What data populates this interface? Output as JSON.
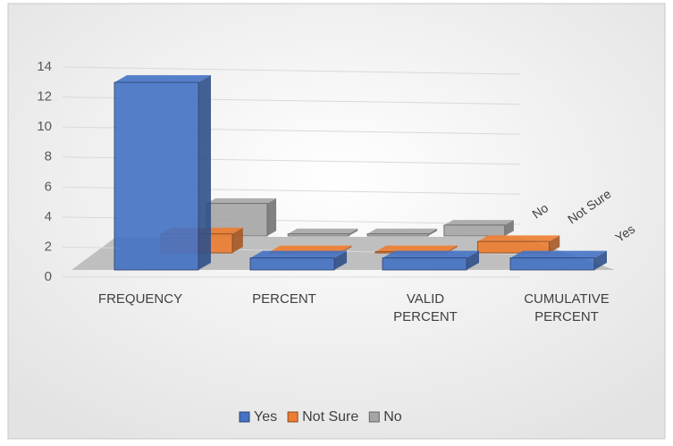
{
  "chart_data": {
    "type": "bar3d",
    "categories": [
      "FREQUENCY",
      "PERCENT",
      "VALID PERCENT",
      "CUMULATIVE PERCENT"
    ],
    "series": [
      {
        "name": "Yes",
        "color": "#4472c4",
        "values": [
          12.5,
          0.8,
          0.8,
          0.8
        ]
      },
      {
        "name": "Not Sure",
        "color": "#ed7d31",
        "values": [
          1.5,
          0.1,
          0.1,
          0.9
        ]
      },
      {
        "name": "No",
        "color": "#a5a5a5",
        "values": [
          3,
          0.2,
          0.2,
          1
        ]
      }
    ],
    "ylim": [
      0,
      14
    ],
    "yticks": [
      0,
      2,
      4,
      6,
      8,
      10,
      12,
      14
    ],
    "grid": true,
    "legend": "bottom"
  }
}
